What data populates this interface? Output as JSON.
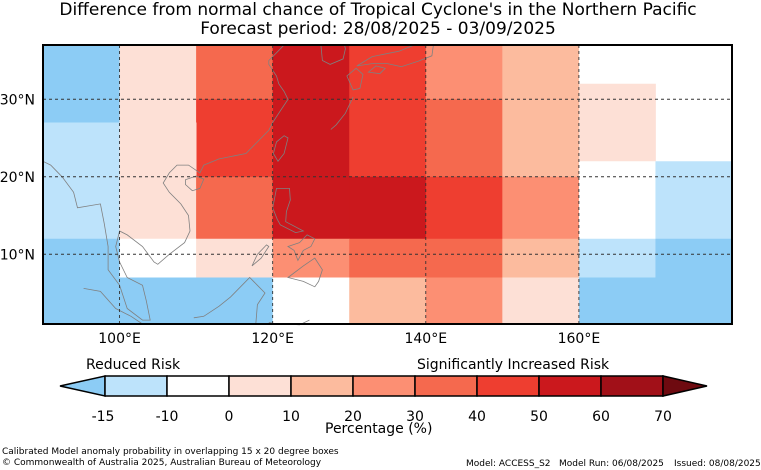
{
  "title_line1": "Difference from normal chance of Tropical Cyclone's in the Northern Pacific",
  "title_line2": "Forecast period: 28/08/2025 - 03/09/2025",
  "map": {
    "lon_range": [
      90,
      180
    ],
    "lat_range": [
      1,
      37
    ],
    "lat_ticks": [
      {
        "value": 10,
        "label": "10°N"
      },
      {
        "value": 20,
        "label": "20°N"
      },
      {
        "value": 30,
        "label": "30°N"
      }
    ],
    "lon_ticks": [
      {
        "value": 100,
        "label": "100°E"
      },
      {
        "value": 120,
        "label": "120°E"
      },
      {
        "value": 140,
        "label": "140°E"
      },
      {
        "value": 160,
        "label": "160°E"
      }
    ],
    "gridline_style": "dashed",
    "coastline_color": "#808080",
    "cells": [
      {
        "lon": [
          90,
          100
        ],
        "lat": [
          27,
          37
        ],
        "bin": 0
      },
      {
        "lon": [
          100,
          110
        ],
        "lat": [
          27,
          37
        ],
        "bin": 3
      },
      {
        "lon": [
          110,
          120
        ],
        "lat": [
          30,
          37
        ],
        "bin": 6
      },
      {
        "lon": [
          120,
          130
        ],
        "lat": [
          20,
          37
        ],
        "bin": 8
      },
      {
        "lon": [
          130,
          140
        ],
        "lat": [
          30,
          37
        ],
        "bin": 7
      },
      {
        "lon": [
          140,
          150
        ],
        "lat": [
          30,
          37
        ],
        "bin": 5
      },
      {
        "lon": [
          150,
          160
        ],
        "lat": [
          30,
          37
        ],
        "bin": 4
      },
      {
        "lon": [
          160,
          180
        ],
        "lat": [
          32,
          37
        ],
        "bin": 2
      },
      {
        "lon": [
          110,
          120
        ],
        "lat": [
          20,
          30
        ],
        "bin": 7
      },
      {
        "lon": [
          130,
          140
        ],
        "lat": [
          20,
          30
        ],
        "bin": 7
      },
      {
        "lon": [
          140,
          150
        ],
        "lat": [
          20,
          30
        ],
        "bin": 6
      },
      {
        "lon": [
          150,
          160
        ],
        "lat": [
          20,
          30
        ],
        "bin": 4
      },
      {
        "lon": [
          160,
          170
        ],
        "lat": [
          22,
          32
        ],
        "bin": 3
      },
      {
        "lon": [
          90,
          100
        ],
        "lat": [
          12,
          27
        ],
        "bin": 1
      },
      {
        "lon": [
          100,
          110
        ],
        "lat": [
          12,
          27
        ],
        "bin": 3
      },
      {
        "lon": [
          110,
          120
        ],
        "lat": [
          12,
          20
        ],
        "bin": 6
      },
      {
        "lon": [
          120,
          130
        ],
        "lat": [
          12,
          20
        ],
        "bin": 8
      },
      {
        "lon": [
          130,
          140
        ],
        "lat": [
          12,
          20
        ],
        "bin": 8
      },
      {
        "lon": [
          140,
          150
        ],
        "lat": [
          12,
          20
        ],
        "bin": 7
      },
      {
        "lon": [
          150,
          160
        ],
        "lat": [
          12,
          20
        ],
        "bin": 5
      },
      {
        "lon": [
          160,
          170
        ],
        "lat": [
          12,
          22
        ],
        "bin": 2
      },
      {
        "lon": [
          170,
          180
        ],
        "lat": [
          12,
          22
        ],
        "bin": 1
      },
      {
        "lon": [
          90,
          100
        ],
        "lat": [
          1,
          12
        ],
        "bin": 0
      },
      {
        "lon": [
          100,
          110
        ],
        "lat": [
          7,
          12
        ],
        "bin": 2
      },
      {
        "lon": [
          110,
          120
        ],
        "lat": [
          7,
          12
        ],
        "bin": 3
      },
      {
        "lon": [
          120,
          130
        ],
        "lat": [
          7,
          12
        ],
        "bin": 5
      },
      {
        "lon": [
          130,
          140
        ],
        "lat": [
          7,
          12
        ],
        "bin": 6
      },
      {
        "lon": [
          140,
          150
        ],
        "lat": [
          7,
          12
        ],
        "bin": 6
      },
      {
        "lon": [
          150,
          160
        ],
        "lat": [
          7,
          12
        ],
        "bin": 4
      },
      {
        "lon": [
          160,
          170
        ],
        "lat": [
          7,
          12
        ],
        "bin": 1
      },
      {
        "lon": [
          170,
          180
        ],
        "lat": [
          1,
          12
        ],
        "bin": 0
      },
      {
        "lon": [
          100,
          120
        ],
        "lat": [
          1,
          7
        ],
        "bin": 0
      },
      {
        "lon": [
          120,
          130
        ],
        "lat": [
          1,
          7
        ],
        "bin": 2
      },
      {
        "lon": [
          130,
          140
        ],
        "lat": [
          1,
          7
        ],
        "bin": 4
      },
      {
        "lon": [
          140,
          150
        ],
        "lat": [
          1,
          7
        ],
        "bin": 5
      },
      {
        "lon": [
          150,
          160
        ],
        "lat": [
          1,
          7
        ],
        "bin": 3
      },
      {
        "lon": [
          160,
          170
        ],
        "lat": [
          1,
          7
        ],
        "bin": 0
      }
    ]
  },
  "colorbar": {
    "label": "Percentage (%)",
    "left_text": "Reduced Risk",
    "right_text": "Significantly Increased Risk",
    "ticks": [
      "-15",
      "-10",
      "0",
      "10",
      "20",
      "30",
      "40",
      "50",
      "60",
      "70"
    ],
    "under_color": "#8cccf5",
    "over_color": "#6e0a10",
    "colors": [
      "#8cccf5",
      "#bde3fb",
      "#ffffff",
      "#fde0d6",
      "#fcbb9e",
      "#fc8f73",
      "#f5694e",
      "#ee3e30",
      "#cb181d",
      "#a11018"
    ]
  },
  "footer": {
    "line1": "Calibrated Model anomaly probability in overlapping 15 x 20 degree boxes",
    "line2": "© Commonwealth of Australia 2025, Australian Bureau of Meteorology",
    "model": "Model: ACCESS_S2",
    "model_run": "Model Run: 06/08/2025",
    "issued": "Issued: 08/08/2025"
  }
}
